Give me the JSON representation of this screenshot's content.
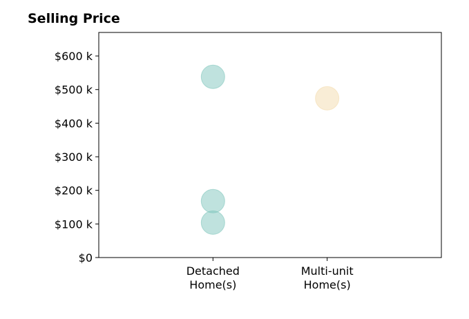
{
  "chart_data": {
    "type": "scatter",
    "title": "Selling Price",
    "xlabel": "",
    "ylabel": "",
    "categories": [
      [
        "Detached",
        "Home(s)"
      ],
      [
        "Multi-unit",
        "Home(s)"
      ]
    ],
    "y_ticks": [
      {
        "value": 0,
        "label": "$0"
      },
      {
        "value": 100000,
        "label": "$100 k"
      },
      {
        "value": 200000,
        "label": "$200 k"
      },
      {
        "value": 300000,
        "label": "$300 k"
      },
      {
        "value": 400000,
        "label": "$400 k"
      },
      {
        "value": 500000,
        "label": "$500 k"
      },
      {
        "value": 600000,
        "label": "$600 k"
      }
    ],
    "ylim": [
      0,
      670000
    ],
    "xlim": [
      -1,
      2
    ],
    "grid": false,
    "legend": "none",
    "points": [
      {
        "category_index": 0,
        "value": 538000,
        "color": "#80c6bd"
      },
      {
        "category_index": 0,
        "value": 168000,
        "color": "#80c6bd"
      },
      {
        "category_index": 0,
        "value": 104000,
        "color": "#80c6bd"
      },
      {
        "category_index": 1,
        "value": 474000,
        "color": "#f4dcae"
      }
    ]
  }
}
